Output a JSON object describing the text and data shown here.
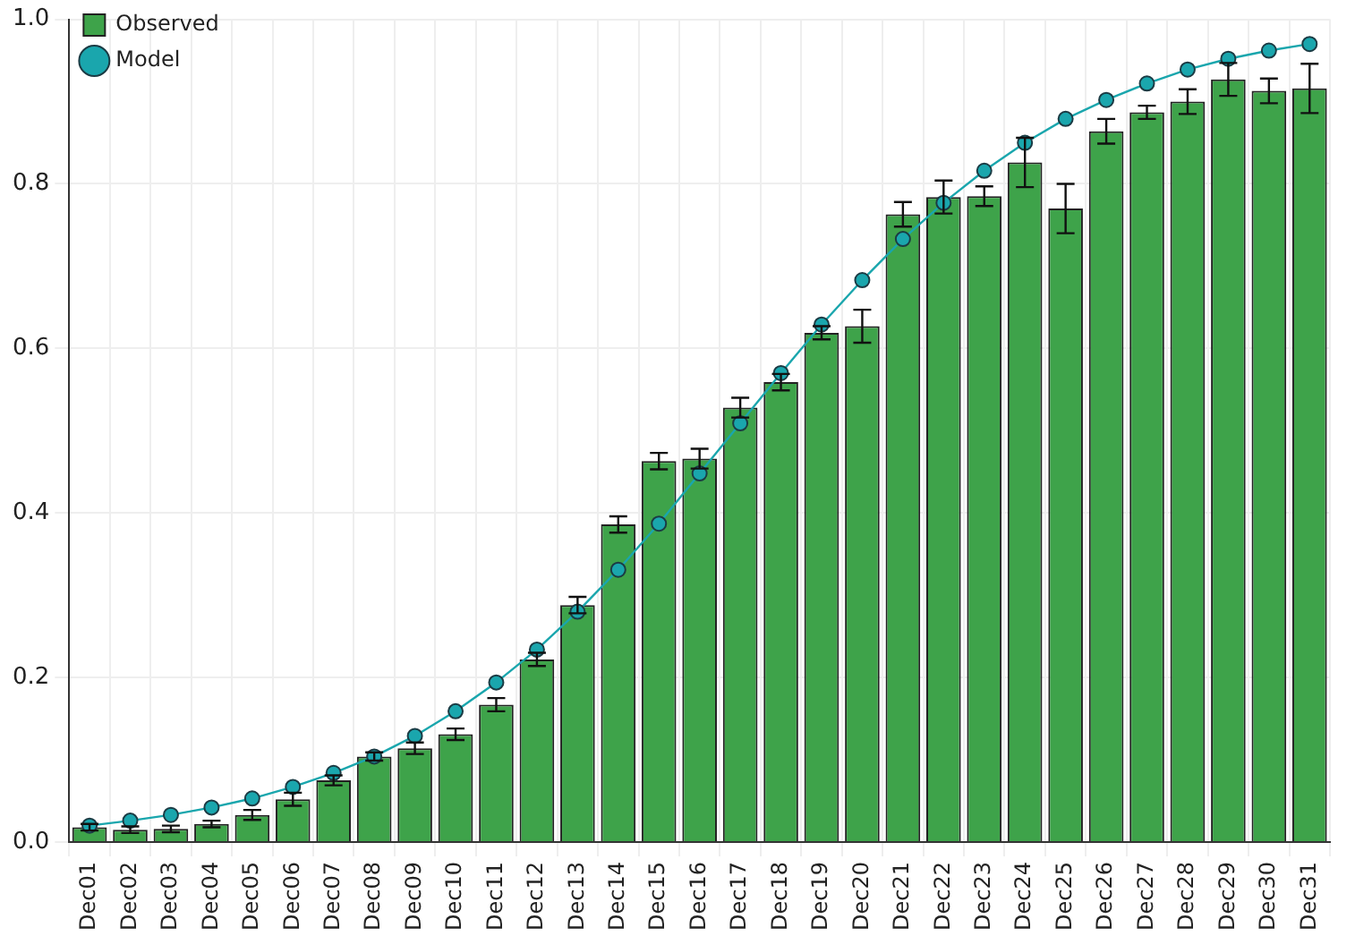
{
  "chart_data": {
    "type": "bar",
    "categories": [
      "Dec01",
      "Dec02",
      "Dec03",
      "Dec04",
      "Dec05",
      "Dec06",
      "Dec07",
      "Dec08",
      "Dec09",
      "Dec10",
      "Dec11",
      "Dec12",
      "Dec13",
      "Dec14",
      "Dec15",
      "Dec16",
      "Dec17",
      "Dec18",
      "Dec19",
      "Dec20",
      "Dec21",
      "Dec22",
      "Dec23",
      "Dec24",
      "Dec25",
      "Dec26",
      "Dec27",
      "Dec28",
      "Dec29",
      "Dec30",
      "Dec31"
    ],
    "series": [
      {
        "name": "Observed",
        "color": "#3ea34a",
        "values": [
          0.018,
          0.015,
          0.016,
          0.022,
          0.033,
          0.052,
          0.075,
          0.104,
          0.114,
          0.131,
          0.167,
          0.222,
          0.288,
          0.386,
          0.463,
          0.466,
          0.528,
          0.559,
          0.619,
          0.627,
          0.763,
          0.784,
          0.785,
          0.826,
          0.77,
          0.864,
          0.887,
          0.9,
          0.927,
          0.913,
          0.916
        ],
        "errors": [
          0.004,
          0.004,
          0.004,
          0.004,
          0.006,
          0.008,
          0.006,
          0.005,
          0.007,
          0.007,
          0.008,
          0.008,
          0.01,
          0.01,
          0.01,
          0.012,
          0.012,
          0.01,
          0.008,
          0.02,
          0.015,
          0.02,
          0.012,
          0.03,
          0.03,
          0.015,
          0.008,
          0.015,
          0.02,
          0.015,
          0.03
        ]
      },
      {
        "name": "Model",
        "type": "line",
        "color": "#1aa6ad",
        "marker": "circle",
        "values": [
          0.02,
          0.026,
          0.033,
          0.042,
          0.053,
          0.067,
          0.084,
          0.104,
          0.129,
          0.159,
          0.194,
          0.234,
          0.28,
          0.331,
          0.387,
          0.448,
          0.509,
          0.57,
          0.629,
          0.683,
          0.733,
          0.777,
          0.816,
          0.85,
          0.879,
          0.902,
          0.922,
          0.939,
          0.952,
          0.962,
          0.97
        ]
      }
    ],
    "ylim": [
      0,
      1
    ],
    "yticks": [
      {
        "value": 0,
        "label": "0.0"
      },
      {
        "value": 0.2,
        "label": "0.2"
      },
      {
        "value": 0.4,
        "label": "0.4"
      },
      {
        "value": 0.6,
        "label": "0.6"
      },
      {
        "value": 0.8,
        "label": "0.8"
      },
      {
        "value": 1,
        "label": "1.0"
      }
    ],
    "grid": true,
    "legend": "top left"
  }
}
